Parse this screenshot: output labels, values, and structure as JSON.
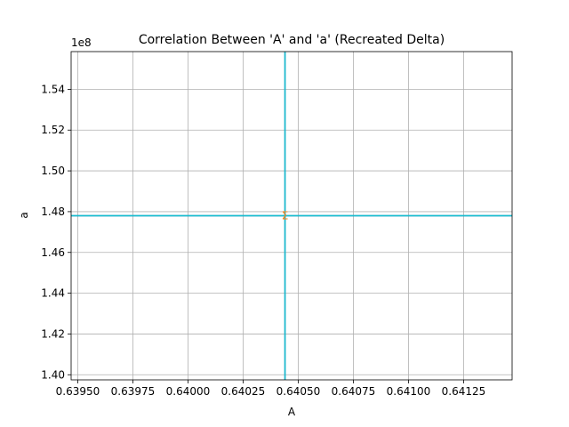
{
  "chart_data": {
    "type": "line",
    "title": "Correlation Between 'A' and 'a' (Recreated Delta)",
    "xlabel": "A",
    "ylabel": "a",
    "y_offset_label": "1e8",
    "xlim": [
      0.63947,
      0.64147
    ],
    "ylim": [
      1.3975,
      1.5585
    ],
    "x_ticks": [
      0.6395,
      0.63975,
      0.64,
      0.64025,
      0.6405,
      0.64075,
      0.641,
      0.64125
    ],
    "x_tick_labels": [
      "0.63950",
      "0.63975",
      "0.64000",
      "0.64025",
      "0.64050",
      "0.64075",
      "0.64100",
      "0.64125"
    ],
    "y_ticks": [
      1.4,
      1.42,
      1.44,
      1.46,
      1.48,
      1.5,
      1.52,
      1.54
    ],
    "y_tick_labels": [
      "1.40",
      "1.42",
      "1.44",
      "1.46",
      "1.48",
      "1.50",
      "1.52",
      "1.54"
    ],
    "grid": true,
    "series": [
      {
        "x": [
          0.64044,
          0.64044
        ],
        "y": [
          1.3975,
          1.5585
        ],
        "color": "#1f77b4"
      },
      {
        "x": [
          0.63947,
          0.64147
        ],
        "y": [
          1.478,
          1.478
        ],
        "color": "#1f77b4"
      },
      {
        "x": [
          0.64044,
          0.64044
        ],
        "y": [
          1.3975,
          1.5585
        ],
        "color": "#17becf"
      },
      {
        "x": [
          0.63947,
          0.64147
        ],
        "y": [
          1.478,
          1.478
        ],
        "color": "#17becf"
      }
    ],
    "point": {
      "x": 0.64044,
      "y": 1.478,
      "label": "Σ",
      "color": "#ff7f0e"
    }
  }
}
